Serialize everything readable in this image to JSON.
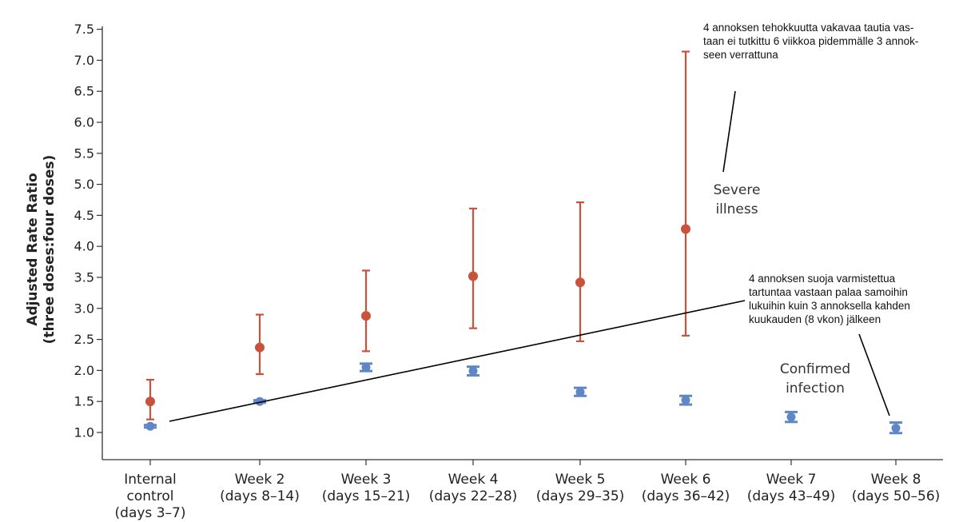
{
  "chart_data": {
    "type": "scatter",
    "title": "",
    "xlabel": "",
    "ylabel": [
      "Adjusted Rate Ratio",
      "(three doses:four doses)"
    ],
    "ylim": [
      0.75,
      7.5
    ],
    "yticks": [
      "1.0",
      "1.5",
      "2.0",
      "2.5",
      "3.0",
      "3.5",
      "4.0",
      "4.5",
      "5.0",
      "5.5",
      "6.0",
      "6.5",
      "7.0",
      "7.5"
    ],
    "categories": [
      [
        "Internal",
        "control",
        "(days 3–7)"
      ],
      [
        "Week 2",
        "(days 8–14)"
      ],
      [
        "Week 3",
        "(days 15–21)"
      ],
      [
        "Week 4",
        "(days 22–28)"
      ],
      [
        "Week 5",
        "(days 29–35)"
      ],
      [
        "Week 6",
        "(days 36–42)"
      ],
      [
        "Week 7",
        "(days 43–49)"
      ],
      [
        "Week 8",
        "(days 50–56)"
      ]
    ],
    "grid": false,
    "series": [
      {
        "name": "Severe illness",
        "label_lines": [
          "Severe",
          "illness"
        ],
        "color": "#c9523b",
        "values": [
          1.5,
          2.37,
          2.88,
          3.52,
          3.42,
          4.28,
          null,
          null
        ],
        "ci_low": [
          1.21,
          1.94,
          2.31,
          2.68,
          2.47,
          2.56,
          null,
          null
        ],
        "ci_high": [
          1.85,
          2.9,
          3.61,
          4.61,
          4.71,
          7.14,
          null,
          null
        ]
      },
      {
        "name": "Confirmed infection",
        "label_lines": [
          "Confirmed",
          "infection"
        ],
        "color": "#5f87c6",
        "values": [
          1.1,
          1.5,
          2.05,
          1.99,
          1.65,
          1.52,
          1.25,
          1.07
        ],
        "ci_low": [
          1.08,
          1.48,
          1.99,
          1.92,
          1.59,
          1.45,
          1.17,
          0.99
        ],
        "ci_high": [
          1.12,
          1.52,
          2.11,
          2.06,
          1.72,
          1.59,
          1.33,
          1.16
        ]
      }
    ],
    "annotations": [
      {
        "name": "severe-note",
        "lines": [
          "4 annoksen tehokkuutta vakavaa tautia vas-",
          "taan ei tutkittu 6 viikkoa pidemmälle 3 annok-",
          "seen verrattuna"
        ]
      },
      {
        "name": "infection-note",
        "lines": [
          "4 annoksen suoja varmistettua",
          "tartuntaa vastaan palaa samoihin",
          "lukuihin kuin 3 annoksella kahden",
          "kuukauden (8 vkon) jälkeen"
        ]
      }
    ]
  }
}
